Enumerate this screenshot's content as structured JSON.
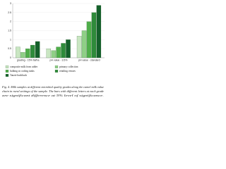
{
  "chart_data": {
    "type": "bar",
    "categories": [
      "grading - 15% fat/ha",
      "pH value - 3.5%",
      "pH value - standard"
    ],
    "series": [
      {
        "name": "composite milk from udder",
        "color": "#c9e6c2",
        "values": [
          0.6,
          0.5,
          1.2
        ]
      },
      {
        "name": "primary collection",
        "color": "#8fcf86",
        "values": [
          0.3,
          0.4,
          1.5
        ]
      },
      {
        "name": "bulking at cooling tanks",
        "color": "#4fae4a",
        "values": [
          0.5,
          0.6,
          2.0
        ]
      },
      {
        "name": "retailing venues",
        "color": "#2e8b3a",
        "values": [
          0.7,
          0.8,
          2.5
        ]
      },
      {
        "name": "Tanzie bushbuck",
        "color": "#14602a",
        "values": [
          0.9,
          1.0,
          2.9
        ]
      }
    ],
    "ylim": [
      0,
      3
    ],
    "yticks": [
      0,
      0.5,
      1,
      1.5,
      2,
      2.5,
      3
    ],
    "grid": true,
    "caption": [
      "Fig. 4. Milk samples at different microbial quality grades along the camel milk value",
      "chain in rural settings of the sample. The bars with different letters at each grade",
      "are significant difference at 5% level of significance."
    ]
  }
}
